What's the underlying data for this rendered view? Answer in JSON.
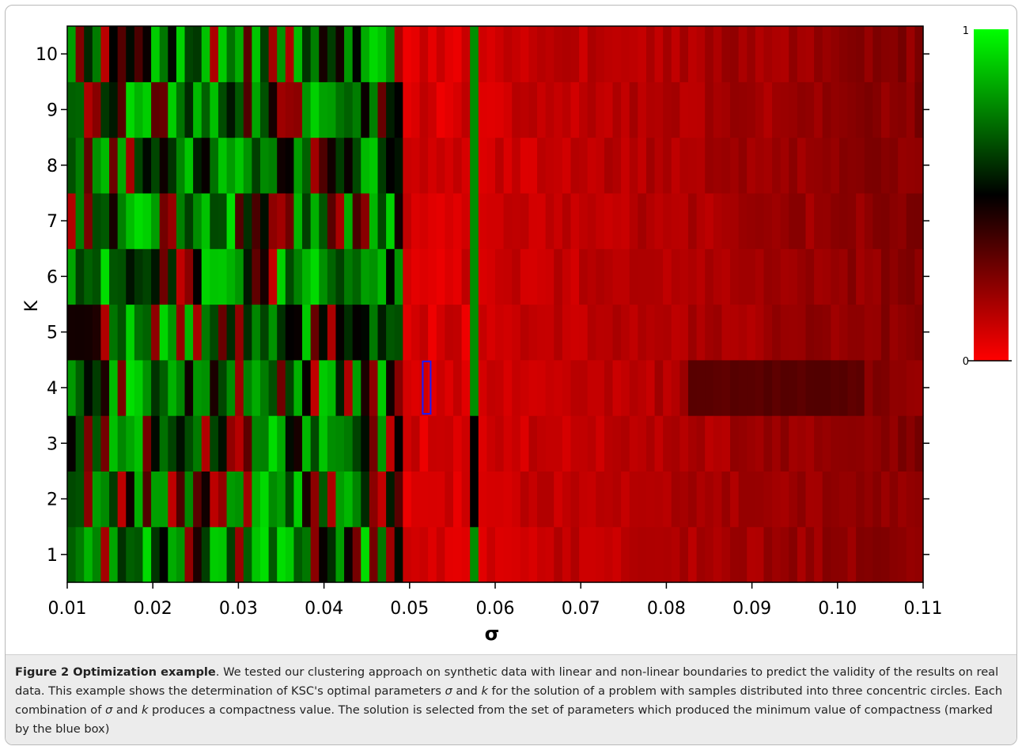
{
  "chart_data": {
    "type": "heatmap",
    "xlabel": "σ",
    "ylabel": "K",
    "xlim": [
      0.01,
      0.11
    ],
    "x_ticks": [
      "0.01",
      "0.02",
      "0.03",
      "0.04",
      "0.05",
      "0.06",
      "0.07",
      "0.08",
      "0.09",
      "0.10",
      "0.11"
    ],
    "y_ticks": [
      "1",
      "2",
      "3",
      "4",
      "5",
      "6",
      "7",
      "8",
      "9",
      "10"
    ],
    "y_values": [
      1,
      2,
      3,
      4,
      5,
      6,
      7,
      8,
      9,
      10
    ],
    "colorbar": {
      "min_label": "0",
      "max_label": "1",
      "low_color": "#ff0000",
      "mid_color": "#000000",
      "high_color": "#00ff00"
    },
    "colors": {
      "low": "#ff0000",
      "mid": "#000000",
      "high": "#00ff00",
      "highlight_box": "#1a1aff"
    },
    "highlight": {
      "sigma": 0.052,
      "k": 4,
      "note": "blue box marks the selected minimum-compactness solution"
    },
    "value_model": {
      "description": "per-column compactness values (0 = red, 0.5 = black, 1 = green), approximate",
      "regions": [
        {
          "sigma_from": 0.01,
          "sigma_to": 0.049,
          "pattern": "mixed green / black / dark red, mostly high (0.55–1.0)"
        },
        {
          "sigma_from": 0.049,
          "sigma_to": 0.0575,
          "pattern": "bright red (≈0.02–0.12)"
        },
        {
          "sigma_from": 0.0575,
          "sigma_to": 0.058,
          "pattern": "green stripe, black at K=2–3"
        },
        {
          "sigma_from": 0.058,
          "sigma_to": 0.11,
          "pattern": "red, darkening toward high σ (≈0.05–0.30)"
        }
      ]
    }
  },
  "caption": {
    "label": "Figure 2 Optimization example",
    "text_1": ". We tested our clustering approach on synthetic data with linear and non-linear boundaries to predict the validity of the results on real data. This example shows the determination of KSC's optimal parameters ",
    "sym_sigma": "σ",
    "text_2": " and ",
    "sym_k": "k",
    "text_3": " for the solution of a problem with samples distributed into three concentric circles. Each combination of ",
    "sym_sigma_2": "σ",
    "text_4": " and ",
    "sym_k_2": "k",
    "text_5": " produces a compactness value. The solution is selected from the set of parameters which produced the minimum value of compactness (marked by the blue box)"
  }
}
